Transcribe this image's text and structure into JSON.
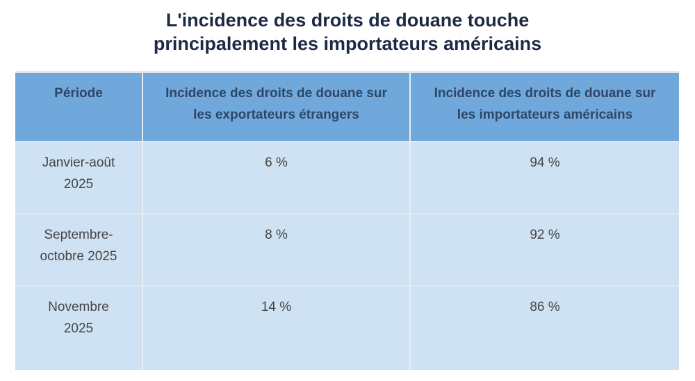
{
  "header": {
    "title_lines": [
      "L'incidence des droits de douane touche",
      "principalement les importateurs américains"
    ]
  },
  "table": {
    "columns": [
      "Période",
      "Incidence des droits de douane sur les exportateurs étrangers",
      "Incidence des droits de douane sur les importateurs américains"
    ],
    "rows": [
      [
        "Janvier-août 2025",
        "6 %",
        "94 %"
      ],
      [
        "Septembre-octobre 2025",
        "8 %",
        "92 %"
      ],
      [
        "Novembre 2025",
        "14 %",
        "86 %"
      ]
    ]
  }
}
